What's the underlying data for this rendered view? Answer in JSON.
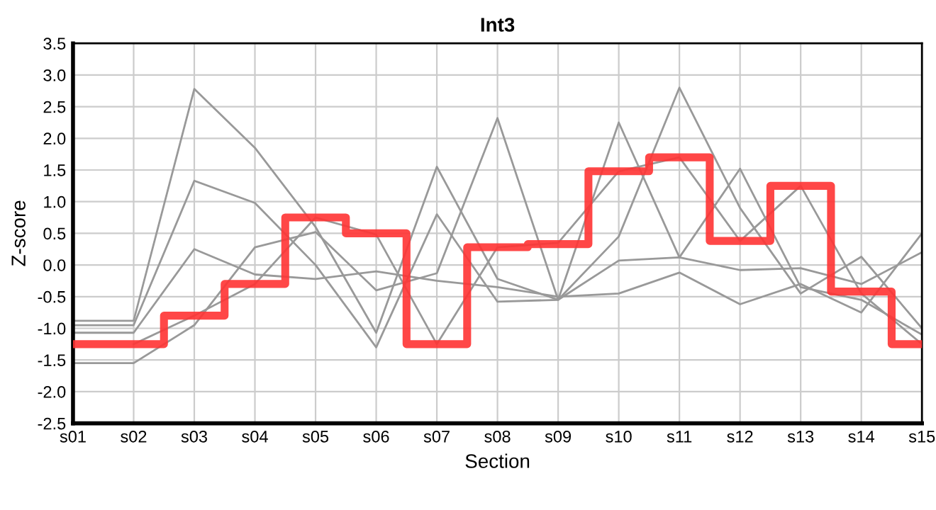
{
  "chart_data": {
    "type": "line",
    "title": "Int3",
    "xlabel": "Section",
    "ylabel": "Z-score",
    "categories": [
      "s01",
      "s02",
      "s03",
      "s04",
      "s05",
      "s06",
      "s07",
      "s08",
      "s09",
      "s10",
      "s11",
      "s12",
      "s13",
      "s14",
      "s15"
    ],
    "series": [
      {
        "color": "#999999",
        "values": [
          -0.88,
          -0.88,
          2.78,
          1.85,
          0.6,
          -1.07,
          1.55,
          -0.22,
          -0.55,
          2.25,
          0.12,
          1.52,
          -0.35,
          -0.55,
          -1.1
        ]
      },
      {
        "color": "#999999",
        "values": [
          -0.95,
          -0.95,
          1.33,
          0.98,
          0.0,
          -1.3,
          0.8,
          -0.58,
          -0.55,
          0.45,
          2.8,
          0.9,
          -0.45,
          0.13,
          -1.0
        ]
      },
      {
        "color": "#999999",
        "values": [
          -1.07,
          -1.07,
          0.25,
          -0.15,
          -0.22,
          -0.1,
          -0.25,
          -0.35,
          -0.5,
          -0.45,
          -0.12,
          -0.62,
          -0.3,
          -0.75,
          0.5
        ]
      },
      {
        "color": "#999999",
        "values": [
          -1.55,
          -1.55,
          -0.95,
          0.28,
          0.52,
          -0.4,
          -0.13,
          2.32,
          -0.55,
          0.07,
          0.12,
          -0.08,
          -0.05,
          -0.3,
          0.2
        ]
      },
      {
        "color": "#999999",
        "values": [
          null,
          -1.25,
          -0.8,
          -0.3,
          0.75,
          0.48,
          -1.25,
          0.28,
          0.35,
          1.48,
          1.7,
          0.38,
          1.25,
          -0.45,
          -1.25
        ]
      },
      {
        "type": "step",
        "color": "#ff3333",
        "values": [
          -1.25,
          -1.25,
          -0.8,
          -0.3,
          0.75,
          0.5,
          -1.25,
          0.28,
          0.33,
          1.48,
          1.7,
          0.38,
          1.25,
          -0.42,
          -1.25
        ]
      }
    ],
    "ylim": [
      -2.5,
      3.5
    ],
    "yticks": [
      {
        "value": -2.5,
        "label": "-2.5"
      },
      {
        "value": -2,
        "label": "-2.0"
      },
      {
        "value": -1.5,
        "label": "-1.5"
      },
      {
        "value": -1,
        "label": "-1.0"
      },
      {
        "value": -0.5,
        "label": "-0.5"
      },
      {
        "value": 0,
        "label": "0.0"
      },
      {
        "value": 0.5,
        "label": "0.5"
      },
      {
        "value": 1,
        "label": "1.0"
      },
      {
        "value": 1.5,
        "label": "1.5"
      },
      {
        "value": 2,
        "label": "2.0"
      },
      {
        "value": 2.5,
        "label": "2.5"
      },
      {
        "value": 3,
        "label": "3.0"
      },
      {
        "value": 3.5,
        "label": "3.5"
      }
    ],
    "grid": true
  }
}
